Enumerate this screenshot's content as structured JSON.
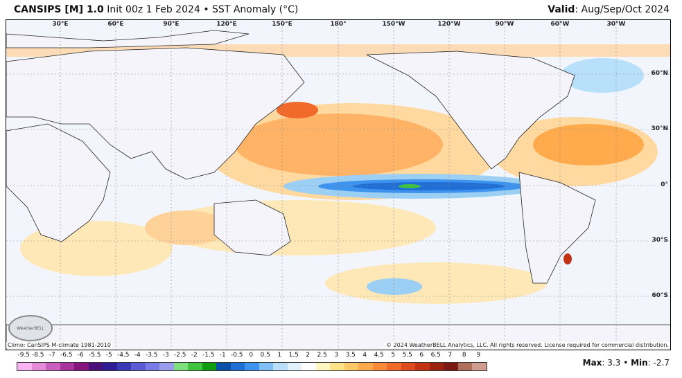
{
  "title": {
    "model": "CANSIPS [M] 1.0",
    "init": "Init 00z 1 Feb 2024",
    "separator": "•",
    "field": "SST Anomaly (°C)",
    "valid_label": "Valid",
    "valid_value": ": Aug/Sep/Oct 2024"
  },
  "map": {
    "lon_labels": [
      "30°E",
      "60°E",
      "90°E",
      "120°E",
      "150°E",
      "180°",
      "150°W",
      "120°W",
      "90°W",
      "60°W",
      "30°W"
    ],
    "lat_labels": [
      "60°N",
      "30°N",
      "0°",
      "30°S",
      "60°S"
    ],
    "ocean_color": "#f2f6fc",
    "land_color": "#f4f4fa",
    "grid": true
  },
  "footer": {
    "climo": "Climo: CanSIPS M-climate 1981-2010",
    "copyright": "© 2024 WeatherBELL Analytics, LLC. All rights reserved. License required for commercial distribution.",
    "logo_text": "WeatherBELL"
  },
  "colorbar": {
    "labels": [
      "-9.5",
      "-8.5",
      "-7",
      "-6.5",
      "-6",
      "-5.5",
      "-5",
      "-4.5",
      "-4",
      "-3.5",
      "-3",
      "-2.5",
      "-2",
      "-1.5",
      "-1",
      "-0.5",
      "0",
      "0.5",
      "1",
      "1.5",
      "2",
      "2.5",
      "3",
      "3.5",
      "4",
      "4.5",
      "5",
      "5.5",
      "6",
      "6.5",
      "7",
      "8",
      "9"
    ],
    "colors": [
      "#f7b2f0",
      "#e58ad9",
      "#c95fbf",
      "#a8339f",
      "#86157d",
      "#4b0f7a",
      "#2e1d95",
      "#3a3ab8",
      "#5b5bd6",
      "#7a7ae6",
      "#9c9cef",
      "#7de07d",
      "#3fc43f",
      "#0f9d0f",
      "#0a4fa8",
      "#1f6fd6",
      "#3d93ee",
      "#7ec0f5",
      "#b9e0fb",
      "#e2f2fd",
      "#ffffff",
      "#fff7c2",
      "#ffe38a",
      "#ffc766",
      "#ffab4d",
      "#ff8a3a",
      "#f26a2a",
      "#e04a1f",
      "#c23214",
      "#9e230e",
      "#7a1a10",
      "#b06f5a",
      "#cf9e90"
    ]
  },
  "stats": {
    "max_label": "Max",
    "max_value": ": 3.3",
    "separator": "•",
    "min_label": "Min",
    "min_value": ": -2.7"
  }
}
